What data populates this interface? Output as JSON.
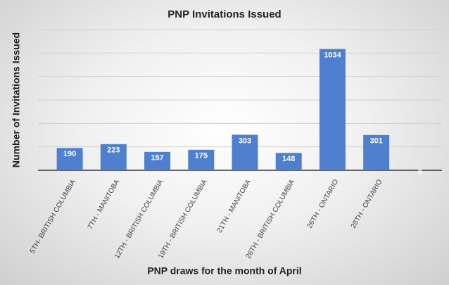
{
  "chart_data": {
    "type": "bar",
    "title": "PNP Invitations Issued",
    "x_label": "PNP draws for the month of April",
    "y_label": "Number of Invitations Issued",
    "categories": [
      "5TH- BRITISH COLUMBIA",
      "7TH - MANITOBA",
      "12TH - BRITISH COLUMBIA",
      "19TH - BRITISH COLUMBIA",
      "21TH - MANITOBA",
      "26TH - BRITISH COLUMBIA",
      "26TH - ONTARIO",
      "28TH - ONTARIO",
      null
    ],
    "values": [
      190,
      223,
      157,
      175,
      303,
      148,
      1034,
      301,
      0
    ],
    "color": "#4f7fcf",
    "ylim": [
      0,
      1200
    ],
    "yticks": [
      0,
      200,
      400,
      600,
      800,
      1000,
      1200
    ],
    "ytick_labels": false,
    "grid": true
  }
}
